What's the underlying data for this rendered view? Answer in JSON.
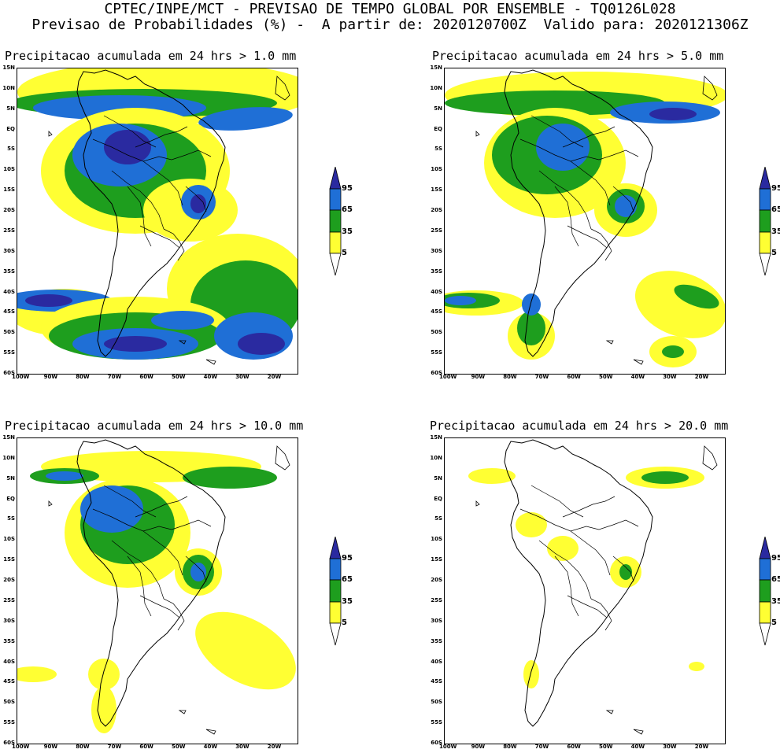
{
  "header": {
    "line1": "CPTEC/INPE/MCT - PREVISAO DE TEMPO GLOBAL POR ENSEMBLE - TQ0126L028",
    "line2": "Previsao de Probabilidades (%) -  A partir de: 2020120700Z  Valido para: 2020121306Z"
  },
  "axes": {
    "lat_labels": [
      "15N",
      "10N",
      "5N",
      "EQ",
      "5S",
      "10S",
      "15S",
      "20S",
      "25S",
      "30S",
      "35S",
      "40S",
      "45S",
      "50S",
      "55S",
      "60S"
    ],
    "lon_labels": [
      "100W",
      "90W",
      "80W",
      "70W",
      "60W",
      "50W",
      "40W",
      "30W",
      "20W"
    ]
  },
  "legend": {
    "levels": [
      "95",
      "65",
      "35",
      "5"
    ],
    "colors": {
      "yellow": "#ffff33",
      "green": "#1e9e1e",
      "blue": "#1f6fd6",
      "darkblue": "#2a2aa0"
    }
  },
  "panels": [
    {
      "title": "Precipitacao acumulada em 24 hrs > 1.0 mm"
    },
    {
      "title": "Precipitacao acumulada em 24 hrs > 5.0 mm"
    },
    {
      "title": "Precipitacao acumulada em 24 hrs > 10.0 mm"
    },
    {
      "title": "Precipitacao acumulada em 24 hrs > 20.0 mm"
    }
  ]
}
